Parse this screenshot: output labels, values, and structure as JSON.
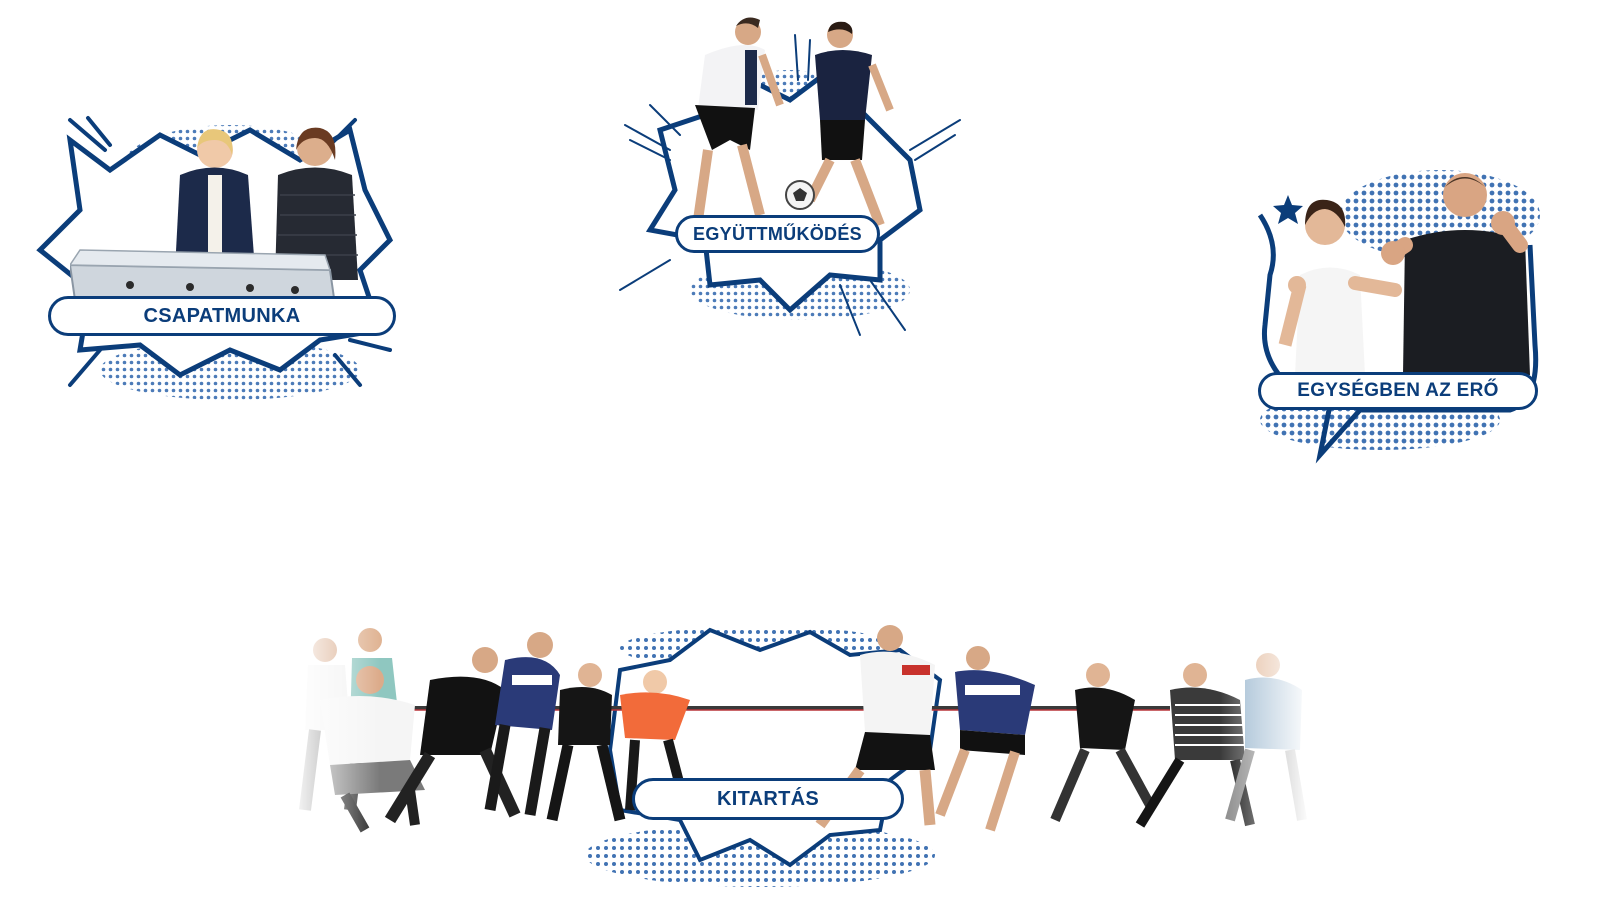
{
  "cards": {
    "csapatmunka": {
      "label": "CSAPATMUNKA",
      "scene": "two women at a foosball table"
    },
    "egyuttmukodes": {
      "label": "EGYÜTTMŰKÖDÉS",
      "scene": "two men playing football"
    },
    "egysegben": {
      "label": "EGYSÉGBEN AZ ERŐ",
      "scene": "woman and man in boxing stance"
    },
    "kitartas": {
      "label": "KITARTÁS",
      "scene": "tug of war team"
    }
  },
  "colors": {
    "accent": "#0b3d7a",
    "dots": "#1f5aa6",
    "background": "#ffffff"
  }
}
